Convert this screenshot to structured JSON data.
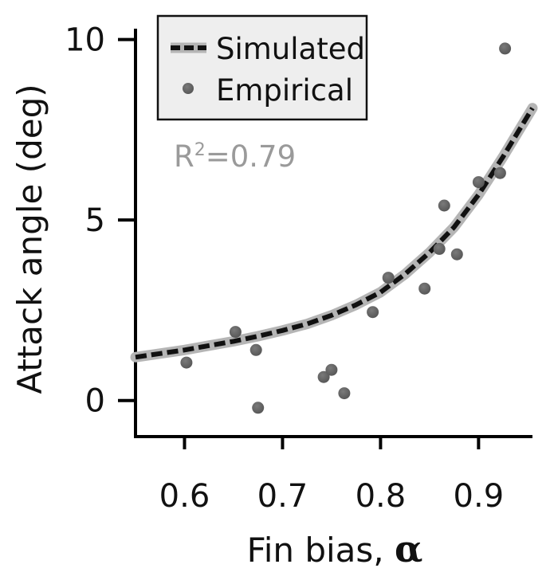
{
  "chart_data": {
    "type": "scatter",
    "xlabel": "Fin bias, ",
    "xlabel_symbol": "α",
    "ylabel": "Attack angle (deg)",
    "xlim": [
      0.55,
      0.955
    ],
    "ylim": [
      -1.0,
      10.3
    ],
    "xticks": [
      0.6,
      0.7,
      0.8,
      0.9
    ],
    "xtick_labels": [
      "0.6",
      "0.7",
      "0.8",
      "0.9"
    ],
    "yticks": [
      0,
      5,
      10
    ],
    "ytick_labels": [
      "0",
      "5",
      "10"
    ],
    "annotation": {
      "prefix": "R",
      "superscript": "2",
      "suffix": "=0.79"
    },
    "legend": {
      "position": "top-left",
      "entries": [
        "Simulated",
        "Empirical"
      ]
    },
    "series": [
      {
        "name": "Simulated",
        "kind": "line",
        "style": "dashed",
        "x": [
          0.55,
          0.575,
          0.6,
          0.625,
          0.65,
          0.675,
          0.7,
          0.725,
          0.75,
          0.775,
          0.8,
          0.825,
          0.85,
          0.875,
          0.9,
          0.925,
          0.955
        ],
        "y": [
          1.2,
          1.3,
          1.4,
          1.52,
          1.64,
          1.78,
          1.94,
          2.12,
          2.36,
          2.65,
          3.0,
          3.5,
          4.1,
          4.8,
          5.7,
          6.75,
          8.1
        ]
      },
      {
        "name": "Empirical",
        "kind": "scatter",
        "x": [
          0.602,
          0.652,
          0.673,
          0.675,
          0.742,
          0.75,
          0.763,
          0.792,
          0.808,
          0.845,
          0.86,
          0.865,
          0.878,
          0.9,
          0.922,
          0.927
        ],
        "y": [
          1.05,
          1.9,
          1.4,
          -0.2,
          0.65,
          0.85,
          0.2,
          2.45,
          3.4,
          3.1,
          4.2,
          5.4,
          4.05,
          6.05,
          6.3,
          9.75
        ]
      }
    ]
  }
}
